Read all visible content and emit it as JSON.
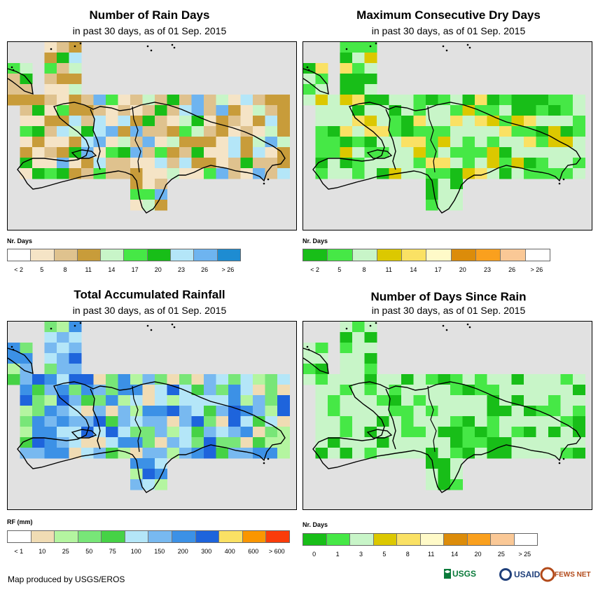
{
  "panels": [
    {
      "id": "rain-days",
      "title": "Number of Rain Days",
      "subtitle": "in past 30 days, as of 01 Sep. 2015",
      "legend_title": "Nr. Days",
      "legend_colors": [
        "#ffffff",
        "#f5e4c6",
        "#dfc28e",
        "#c89c3a",
        "#c8f5c8",
        "#46e846",
        "#18be18",
        "#b4e6f8",
        "#6eb4f0",
        "#1e8cd2"
      ],
      "legend_labels": [
        "< 2",
        "5",
        "8",
        "11",
        "14",
        "17",
        "20",
        "23",
        "26",
        "> 26"
      ]
    },
    {
      "id": "dry-days",
      "title": "Maximum Consecutive Dry Days",
      "subtitle": "in past 30 days, as of 01 Sep. 2015",
      "legend_title": "Nr. Days",
      "legend_colors": [
        "#18be18",
        "#46e846",
        "#c8f5c8",
        "#dcc800",
        "#fae164",
        "#fffac8",
        "#dc8c0a",
        "#faa01e",
        "#fac896",
        "#ffffff"
      ],
      "legend_labels": [
        "< 2",
        "5",
        "8",
        "11",
        "14",
        "17",
        "20",
        "23",
        "26",
        "> 26"
      ]
    },
    {
      "id": "rainfall",
      "title": "Total Accumulated Rainfall",
      "subtitle": "in past 30 days, as of 01 Sep. 2015",
      "legend_title": "RF (mm)",
      "legend_colors": [
        "#ffffff",
        "#f0dcb4",
        "#b4f5a0",
        "#78e678",
        "#46d246",
        "#b4e6f8",
        "#78b9f0",
        "#3c91e6",
        "#1e64dc",
        "#fae164",
        "#fa9600",
        "#fa3c0a"
      ],
      "legend_labels": [
        "< 1",
        "10",
        "25",
        "50",
        "75",
        "100",
        "150",
        "200",
        "300",
        "400",
        "600",
        "> 600"
      ]
    },
    {
      "id": "since-rain",
      "title": "Number of Days Since Rain",
      "subtitle": "in past 30 days, as of 01 Sep. 2015",
      "legend_title": "Nr. Days",
      "legend_colors": [
        "#18be18",
        "#46e846",
        "#c8f5c8",
        "#dcc800",
        "#fae164",
        "#fffac8",
        "#dc8c0a",
        "#faa01e",
        "#fac896",
        "#ffffff"
      ],
      "legend_labels": [
        "0",
        "1",
        "3",
        "5",
        "8",
        "11",
        "14",
        "20",
        "25",
        "> 25"
      ]
    }
  ],
  "credit": "Map produced by USGS/EROS",
  "logos": [
    "USGS",
    "USAID",
    "FEWS NET"
  ]
}
